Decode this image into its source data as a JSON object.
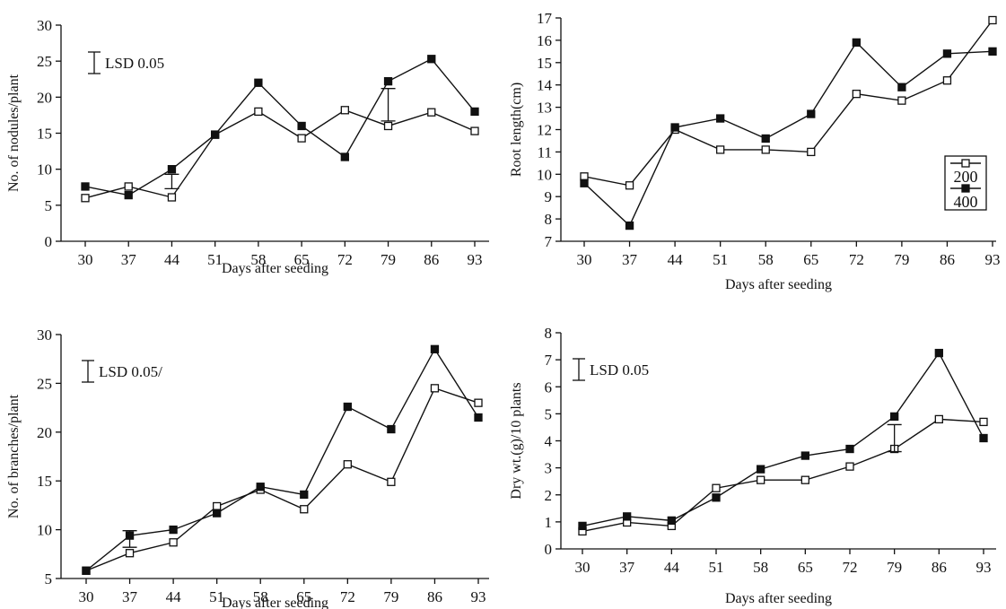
{
  "chart_data": [
    {
      "type": "line",
      "x": [
        30,
        37,
        44,
        51,
        58,
        65,
        72,
        79,
        86,
        93
      ],
      "xlabel": "Days after seeding",
      "ylabel": "No. of nodules/plant",
      "ylim": [
        0,
        30
      ],
      "yticks": [
        0,
        5,
        10,
        15,
        20,
        25,
        30
      ],
      "series": [
        {
          "name": "200",
          "marker": "open-square",
          "values": [
            6,
            7.6,
            6.1,
            14.8,
            18,
            14.3,
            18.2,
            16,
            17.9,
            15.3
          ]
        },
        {
          "name": "400",
          "marker": "filled-square",
          "values": [
            7.6,
            6.4,
            10,
            14.8,
            22,
            16,
            11.7,
            22.2,
            25.3,
            18
          ]
        }
      ],
      "lsd": {
        "label": "LSD 0.05",
        "position": "top-left"
      },
      "lsd_bars": [
        {
          "x": 44,
          "low": 7.3,
          "high": 9.3
        },
        {
          "x": 79,
          "low": 16.7,
          "high": 21.2
        }
      ]
    },
    {
      "type": "line",
      "x": [
        30,
        37,
        44,
        51,
        58,
        65,
        72,
        79,
        86,
        93
      ],
      "xlabel": "Days after seeding",
      "ylabel": "Root length(cm)",
      "ylim": [
        7,
        17
      ],
      "yticks": [
        7,
        8,
        9,
        10,
        11,
        12,
        13,
        14,
        15,
        16,
        17
      ],
      "series": [
        {
          "name": "200",
          "marker": "open-square",
          "values": [
            9.9,
            9.5,
            12,
            11.1,
            11.1,
            11,
            13.6,
            13.3,
            14.2,
            16.9
          ]
        },
        {
          "name": "400",
          "marker": "filled-square",
          "values": [
            9.6,
            7.7,
            12.1,
            12.5,
            11.6,
            12.7,
            15.9,
            13.9,
            15.4,
            15.5
          ]
        }
      ],
      "legend": {
        "position": "right",
        "entries": [
          "200",
          "400"
        ]
      }
    },
    {
      "type": "line",
      "x": [
        30,
        37,
        44,
        51,
        58,
        65,
        72,
        79,
        86,
        93
      ],
      "xlabel": "Days after seeding",
      "ylabel": "No. of branches/plant",
      "ylim": [
        5,
        30
      ],
      "yticks": [
        5,
        10,
        15,
        20,
        25,
        30
      ],
      "series": [
        {
          "name": "200",
          "marker": "open-square",
          "values": [
            5.8,
            7.6,
            8.7,
            12.4,
            14.1,
            12.1,
            16.7,
            14.9,
            24.5,
            23
          ]
        },
        {
          "name": "400",
          "marker": "filled-square",
          "values": [
            5.8,
            9.4,
            10,
            11.7,
            14.4,
            13.6,
            22.6,
            20.3,
            28.5,
            21.5
          ]
        }
      ],
      "lsd": {
        "label": "LSD 0.05/",
        "position": "top-left"
      },
      "lsd_bars": [
        {
          "x": 37,
          "low": 8.2,
          "high": 9.9
        }
      ]
    },
    {
      "type": "line",
      "x": [
        30,
        37,
        44,
        51,
        58,
        65,
        72,
        79,
        86,
        93
      ],
      "xlabel": "Days after seeding",
      "ylabel": "Dry wt.(g)/10 plants",
      "ylim": [
        0,
        8
      ],
      "yticks": [
        0,
        1,
        2,
        3,
        4,
        5,
        6,
        7,
        8
      ],
      "series": [
        {
          "name": "200",
          "marker": "open-square",
          "values": [
            0.65,
            0.98,
            0.85,
            2.25,
            2.55,
            2.55,
            3.05,
            3.7,
            4.8,
            4.7
          ]
        },
        {
          "name": "400",
          "marker": "filled-square",
          "values": [
            0.85,
            1.2,
            1.05,
            1.9,
            2.95,
            3.45,
            3.7,
            4.9,
            7.25,
            4.1
          ]
        }
      ],
      "lsd": {
        "label": "LSD 0.05",
        "position": "top-left"
      },
      "lsd_bars": [
        {
          "x": 79,
          "low": 3.6,
          "high": 4.6
        }
      ]
    }
  ]
}
